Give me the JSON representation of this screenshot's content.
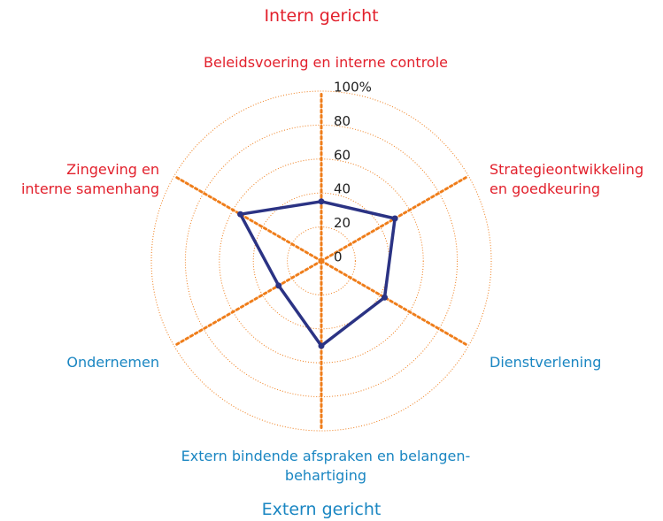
{
  "chart_data": {
    "type": "radar",
    "annotations": [
      {
        "text": "Intern gericht",
        "color": "#e2202c"
      },
      {
        "text": "Extern gericht",
        "color": "#1a86c2"
      }
    ],
    "categories": [
      "Beleidsvoering en interne controle",
      "Strategieontwikkeling\nen goedkeuring",
      "Dienstverlening",
      "Extern bindende afspraken en belangen-behartiging",
      "Ondernemen",
      "Zingeving en\ninterne samenhang"
    ],
    "category_colors": [
      "#e2202c",
      "#e2202c",
      "#1a86c2",
      "#1a86c2",
      "#1a86c2",
      "#e2202c"
    ],
    "series": [
      {
        "color": "#2b3384",
        "values": [
          35,
          50,
          43,
          50,
          29,
          55
        ]
      }
    ],
    "rlim": [
      0,
      100
    ],
    "rticks": [
      0,
      20,
      40,
      60,
      80,
      {
        "value": 100,
        "label": "100%"
      }
    ],
    "grid_color": "#ef7d1a"
  }
}
